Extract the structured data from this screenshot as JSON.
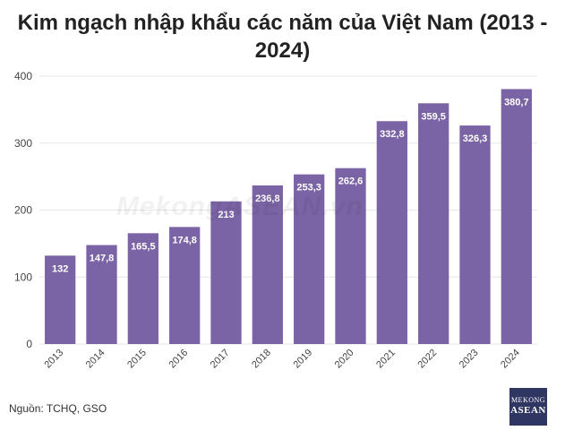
{
  "title_line1": "Kim ngạch nhập khẩu các năm của Việt Nam (2013 -",
  "title_line2": "2024)",
  "source": "Nguồn: TCHQ, GSO",
  "watermark": "MekongASEAN.vn",
  "logo": {
    "line1": "MEKONG",
    "line2": "ASEAN"
  },
  "colors": {
    "bar": "#7b64a6",
    "grid": "#e6e6e6",
    "label": "#ffffff"
  },
  "chart_data": {
    "type": "bar",
    "title": "Kim ngạch nhập khẩu các năm của Việt Nam (2013 - 2024)",
    "categories": [
      "2013",
      "2014",
      "2015",
      "2016",
      "2017",
      "2018",
      "2019",
      "2020",
      "2021",
      "2022",
      "2023",
      "2024"
    ],
    "values": [
      132,
      147.8,
      165.5,
      174.8,
      213,
      236.8,
      253.3,
      262.6,
      332.8,
      359.5,
      326.3,
      380.7
    ],
    "value_labels": [
      "132",
      "147,8",
      "165,5",
      "174,8",
      "213",
      "236,8",
      "253,3",
      "262,6",
      "332,8",
      "359,5",
      "326,3",
      "380,7"
    ],
    "yticks": [
      "0",
      "100",
      "200",
      "300",
      "400"
    ],
    "ylim": [
      0,
      400
    ],
    "grid": true,
    "legend": "none"
  }
}
